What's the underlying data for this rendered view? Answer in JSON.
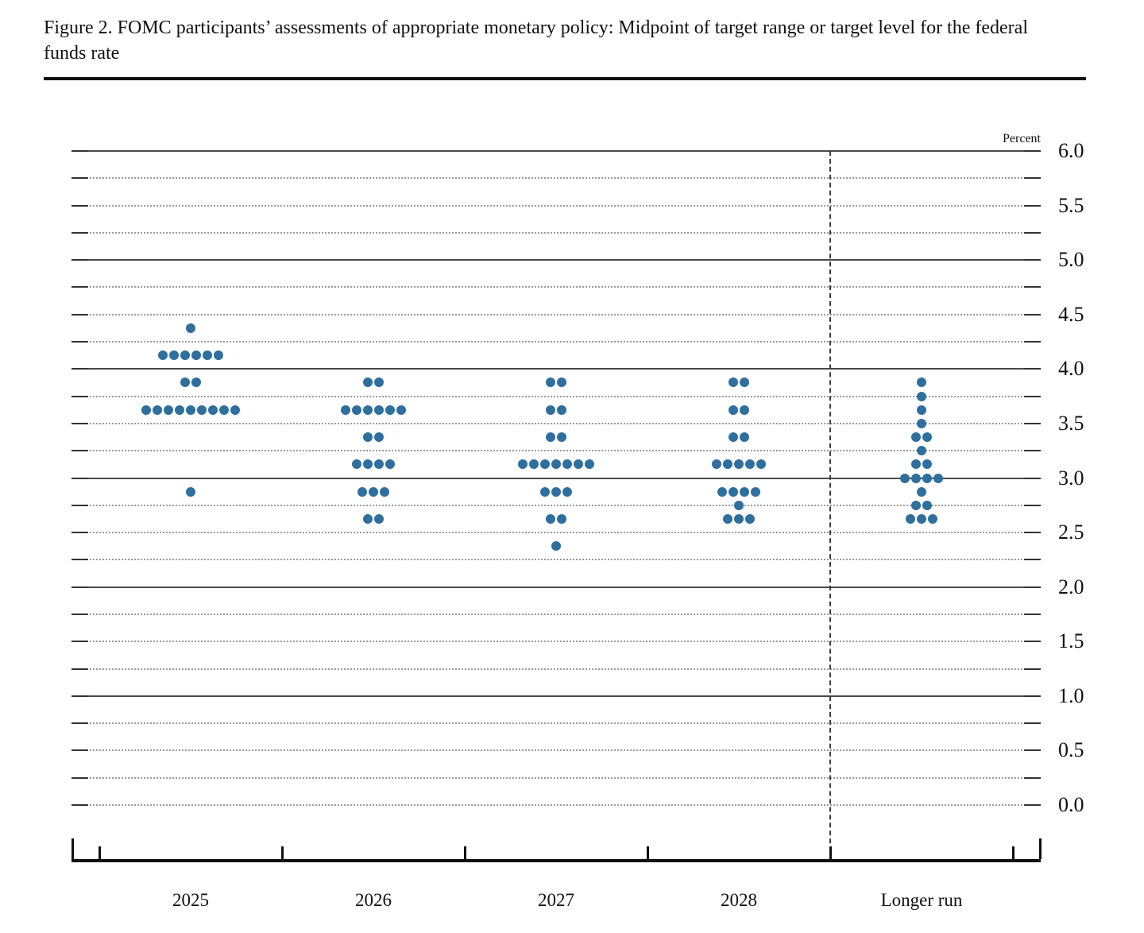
{
  "header": {
    "title": "Figure 2. FOMC participants’ assessments of appropriate monetary policy: Midpoint of target range or target level for the federal funds rate"
  },
  "chart_data": {
    "type": "scatter",
    "subtype": "fomc-dot-plot",
    "title": "Figure 2. FOMC participants’ assessments of appropriate monetary policy: Midpoint of target range or target level for the federal funds rate",
    "ylabel": "Percent",
    "xlabel": "",
    "ylim": [
      0.0,
      6.0
    ],
    "y_labeled_tick_step": 0.5,
    "gridline_step": 0.25,
    "solid_gridlines_at": [
      6.0,
      5.0,
      4.0,
      3.0,
      2.0,
      1.0
    ],
    "grid": true,
    "legend": null,
    "y_tick_labels": [
      "6.0",
      "5.5",
      "5.0",
      "4.5",
      "4.0",
      "3.5",
      "3.0",
      "2.5",
      "2.0",
      "1.5",
      "1.0",
      "0.5",
      "0.0"
    ],
    "categories": [
      "2025",
      "2026",
      "2027",
      "2028",
      "Longer run"
    ],
    "separator_before_category": "Longer run",
    "columns": [
      {
        "label": "2025",
        "dots": [
          {
            "rate": 4.375,
            "count": 1
          },
          {
            "rate": 4.125,
            "count": 6
          },
          {
            "rate": 3.875,
            "count": 2
          },
          {
            "rate": 3.625,
            "count": 9
          },
          {
            "rate": 2.875,
            "count": 1
          }
        ]
      },
      {
        "label": "2026",
        "dots": [
          {
            "rate": 3.875,
            "count": 2
          },
          {
            "rate": 3.625,
            "count": 6
          },
          {
            "rate": 3.375,
            "count": 2
          },
          {
            "rate": 3.125,
            "count": 4
          },
          {
            "rate": 2.875,
            "count": 3
          },
          {
            "rate": 2.625,
            "count": 2
          }
        ]
      },
      {
        "label": "2027",
        "dots": [
          {
            "rate": 3.875,
            "count": 2
          },
          {
            "rate": 3.625,
            "count": 2
          },
          {
            "rate": 3.375,
            "count": 2
          },
          {
            "rate": 3.125,
            "count": 7
          },
          {
            "rate": 2.875,
            "count": 3
          },
          {
            "rate": 2.625,
            "count": 2
          },
          {
            "rate": 2.375,
            "count": 1
          }
        ]
      },
      {
        "label": "2028",
        "dots": [
          {
            "rate": 3.875,
            "count": 2
          },
          {
            "rate": 3.625,
            "count": 2
          },
          {
            "rate": 3.375,
            "count": 2
          },
          {
            "rate": 3.125,
            "count": 5
          },
          {
            "rate": 2.875,
            "count": 4
          },
          {
            "rate": 2.75,
            "count": 1
          },
          {
            "rate": 2.625,
            "count": 3
          }
        ]
      },
      {
        "label": "Longer run",
        "dots": [
          {
            "rate": 3.875,
            "count": 1
          },
          {
            "rate": 3.75,
            "count": 1
          },
          {
            "rate": 3.625,
            "count": 1
          },
          {
            "rate": 3.5,
            "count": 1
          },
          {
            "rate": 3.375,
            "count": 2
          },
          {
            "rate": 3.25,
            "count": 1
          },
          {
            "rate": 3.125,
            "count": 2
          },
          {
            "rate": 3.0,
            "count": 4
          },
          {
            "rate": 2.875,
            "count": 1
          },
          {
            "rate": 2.75,
            "count": 2
          },
          {
            "rate": 2.625,
            "count": 3
          }
        ]
      }
    ],
    "colors": {
      "dot": "#2e6f9e",
      "solid_grid": "#4a4a4a",
      "dotted_grid": "#9a9a9a",
      "axis": "#111111",
      "text": "#111111"
    }
  }
}
